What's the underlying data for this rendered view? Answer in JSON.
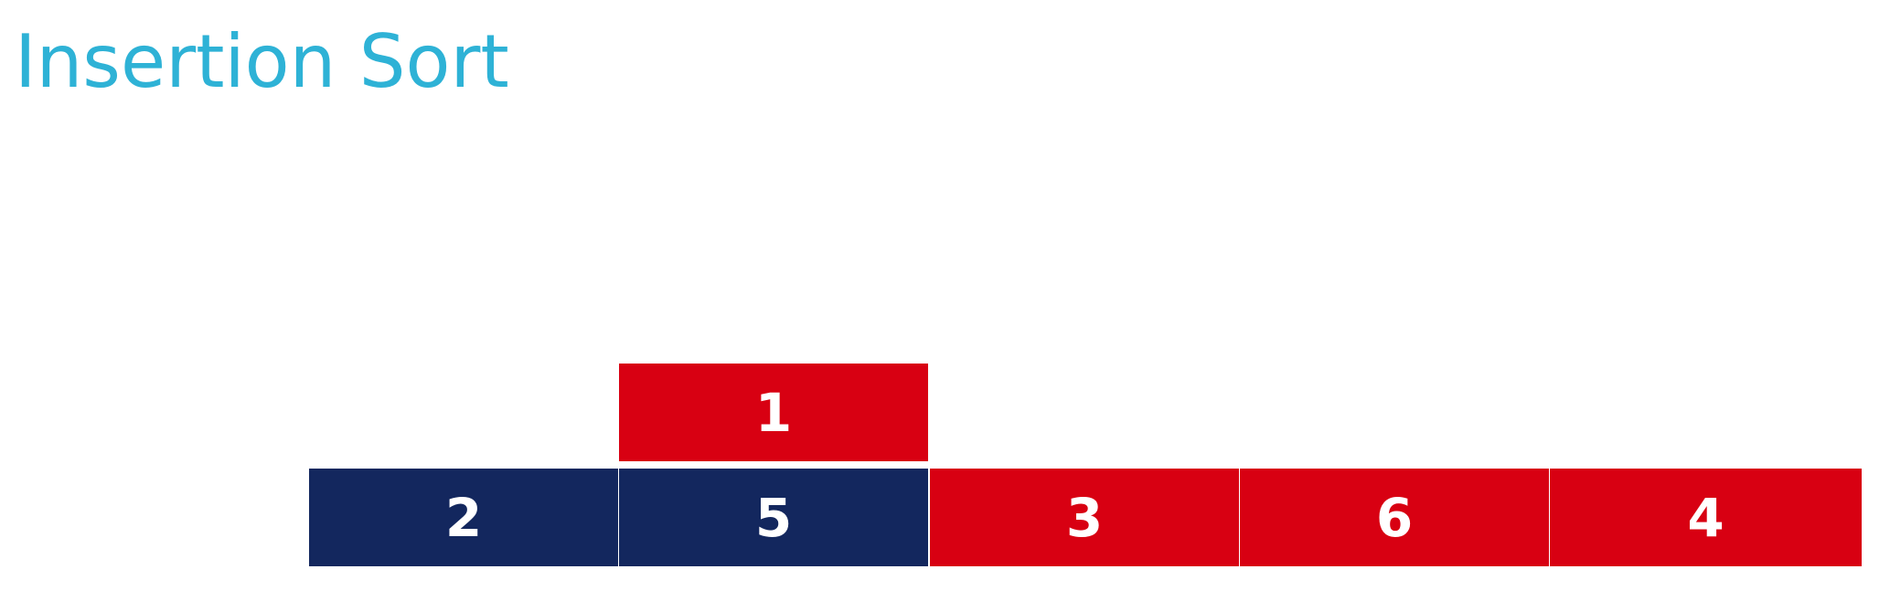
{
  "title": "Insertion Sort",
  "colors": {
    "title": "#2EB2D6",
    "sorted": "#13275E",
    "unsorted": "#D80012",
    "text": "#FFFFFF"
  },
  "key": {
    "value": "1",
    "state": "unsorted"
  },
  "array": [
    {
      "value": "2",
      "state": "sorted"
    },
    {
      "value": "5",
      "state": "sorted"
    },
    {
      "value": "3",
      "state": "unsorted"
    },
    {
      "value": "6",
      "state": "unsorted"
    },
    {
      "value": "4",
      "state": "unsorted"
    }
  ]
}
